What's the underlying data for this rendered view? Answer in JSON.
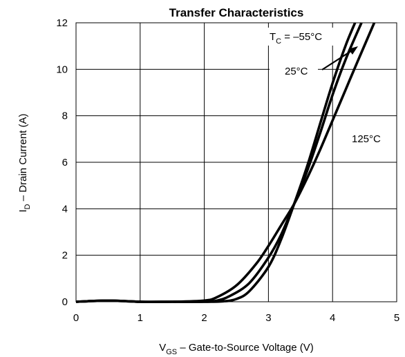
{
  "chart_data": {
    "type": "line",
    "title": "Transfer Characteristics",
    "xlabel_main": "V",
    "xlabel_sub": "GS",
    "xlabel_rest": " – Gate-to-Source Voltage (V)",
    "ylabel_main": "I",
    "ylabel_sub": "D",
    "ylabel_rest": " – Drain Current (A)",
    "xlim": [
      0,
      5
    ],
    "ylim": [
      0,
      12
    ],
    "xticks": [
      "0",
      "1",
      "2",
      "3",
      "4",
      "5"
    ],
    "yticks": [
      "0",
      "2",
      "4",
      "6",
      "8",
      "10",
      "12"
    ],
    "grid": true,
    "annotations": {
      "tc_main": "T",
      "tc_sub": "C",
      "tc_rest": " = –55°C",
      "t25": "25°C",
      "t125": "125°C"
    },
    "series": [
      {
        "name": "T_C = –55°C",
        "x": [
          0,
          0.5,
          1,
          1.5,
          2.0,
          2.3,
          2.5,
          2.7,
          3.0,
          3.2,
          3.4,
          3.6,
          3.8,
          4.0,
          4.2,
          4.35
        ],
        "y": [
          0,
          0.05,
          0,
          0,
          0,
          0.02,
          0.12,
          0.45,
          1.5,
          2.7,
          4.2,
          5.8,
          7.6,
          9.4,
          11.0,
          12.0
        ]
      },
      {
        "name": "25°C",
        "x": [
          0,
          0.5,
          1,
          1.5,
          2.0,
          2.2,
          2.4,
          2.7,
          3.0,
          3.2,
          3.4,
          3.6,
          3.8,
          4.0,
          4.2,
          4.45
        ],
        "y": [
          0,
          0.05,
          0,
          0,
          0,
          0.05,
          0.25,
          0.8,
          1.9,
          2.9,
          4.2,
          5.6,
          7.2,
          8.9,
          10.4,
          12.0
        ]
      },
      {
        "name": "125°C",
        "x": [
          0,
          0.5,
          1,
          1.5,
          2.0,
          2.2,
          2.5,
          2.8,
          3.0,
          3.2,
          3.4,
          3.6,
          3.8,
          4.0,
          4.2,
          4.4,
          4.65
        ],
        "y": [
          0,
          0.05,
          0,
          0,
          0.05,
          0.2,
          0.7,
          1.6,
          2.4,
          3.3,
          4.2,
          5.3,
          6.5,
          7.8,
          9.1,
          10.4,
          12.0
        ]
      }
    ]
  }
}
